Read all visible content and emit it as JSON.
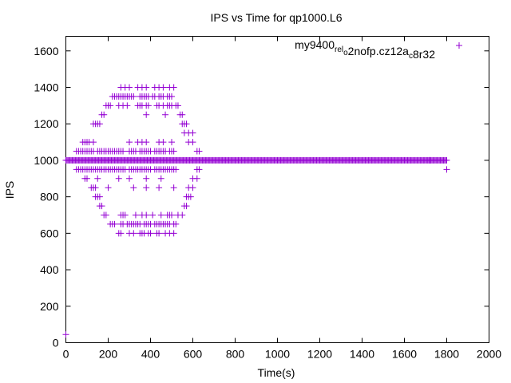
{
  "chart_data": {
    "type": "scatter",
    "title": "IPS vs Time for qp1000.L6",
    "xlabel": "Time(s)",
    "ylabel": "IPS",
    "xlim": [
      0,
      2000
    ],
    "ylim": [
      0,
      1680
    ],
    "x_ticks": [
      0,
      200,
      400,
      600,
      800,
      1000,
      1200,
      1400,
      1600,
      1800,
      2000
    ],
    "y_ticks": [
      0,
      200,
      400,
      600,
      800,
      1000,
      1200,
      1400,
      1600
    ],
    "grid": false,
    "legend_position": "top-right",
    "marker": "plus",
    "color": "#9400d3",
    "series": [
      {
        "name": "my9400_rel_o2nofp.cz12a_c8r32",
        "legend_parts": [
          {
            "text": "my9400",
            "shift": "none"
          },
          {
            "text": "rel",
            "shift": "sub"
          },
          {
            "text": "o",
            "shift": "sub"
          },
          {
            "text": "2nofp.cz12a",
            "shift": "none"
          },
          {
            "text": "c",
            "shift": "sub"
          },
          {
            "text": "8r32",
            "shift": "none"
          }
        ],
        "points": [
          [
            0,
            45
          ],
          [
            1800,
            950
          ],
          [
            1720,
            1000
          ],
          [
            260,
            1400
          ],
          [
            280,
            1400
          ],
          [
            300,
            1400
          ],
          [
            340,
            1400
          ],
          [
            360,
            1400
          ],
          [
            380,
            1400
          ],
          [
            420,
            1400
          ],
          [
            440,
            1400
          ],
          [
            460,
            1400
          ],
          [
            490,
            1400
          ],
          [
            510,
            1400
          ],
          [
            220,
            1350
          ],
          [
            230,
            1350
          ],
          [
            240,
            1350
          ],
          [
            250,
            1350
          ],
          [
            260,
            1350
          ],
          [
            270,
            1350
          ],
          [
            280,
            1350
          ],
          [
            290,
            1350
          ],
          [
            300,
            1350
          ],
          [
            310,
            1350
          ],
          [
            320,
            1350
          ],
          [
            350,
            1350
          ],
          [
            360,
            1350
          ],
          [
            370,
            1350
          ],
          [
            380,
            1350
          ],
          [
            390,
            1350
          ],
          [
            410,
            1350
          ],
          [
            420,
            1350
          ],
          [
            440,
            1350
          ],
          [
            450,
            1350
          ],
          [
            460,
            1350
          ],
          [
            480,
            1350
          ],
          [
            490,
            1350
          ],
          [
            500,
            1350
          ],
          [
            190,
            1300
          ],
          [
            200,
            1300
          ],
          [
            210,
            1300
          ],
          [
            250,
            1300
          ],
          [
            270,
            1300
          ],
          [
            290,
            1300
          ],
          [
            340,
            1300
          ],
          [
            350,
            1300
          ],
          [
            360,
            1300
          ],
          [
            380,
            1300
          ],
          [
            390,
            1300
          ],
          [
            430,
            1300
          ],
          [
            440,
            1300
          ],
          [
            460,
            1300
          ],
          [
            480,
            1300
          ],
          [
            490,
            1300
          ],
          [
            500,
            1300
          ],
          [
            520,
            1300
          ],
          [
            530,
            1300
          ],
          [
            170,
            1250
          ],
          [
            180,
            1250
          ],
          [
            380,
            1250
          ],
          [
            470,
            1250
          ],
          [
            540,
            1250
          ],
          [
            550,
            1250
          ],
          [
            130,
            1200
          ],
          [
            140,
            1200
          ],
          [
            150,
            1200
          ],
          [
            160,
            1200
          ],
          [
            550,
            1200
          ],
          [
            560,
            1200
          ],
          [
            570,
            1200
          ],
          [
            560,
            1150
          ],
          [
            580,
            1150
          ],
          [
            600,
            1150
          ],
          [
            80,
            1100
          ],
          [
            90,
            1100
          ],
          [
            100,
            1100
          ],
          [
            110,
            1100
          ],
          [
            130,
            1100
          ],
          [
            580,
            1100
          ],
          [
            600,
            1100
          ],
          [
            50,
            1050
          ],
          [
            60,
            1050
          ],
          [
            70,
            1050
          ],
          [
            80,
            1050
          ],
          [
            90,
            1050
          ],
          [
            100,
            1050
          ],
          [
            110,
            1050
          ],
          [
            120,
            1050
          ],
          [
            130,
            1050
          ],
          [
            150,
            1050
          ],
          [
            160,
            1050
          ],
          [
            170,
            1050
          ],
          [
            180,
            1050
          ],
          [
            190,
            1050
          ],
          [
            200,
            1050
          ],
          [
            210,
            1050
          ],
          [
            220,
            1050
          ],
          [
            230,
            1050
          ],
          [
            240,
            1050
          ],
          [
            250,
            1050
          ],
          [
            260,
            1050
          ],
          [
            270,
            1050
          ],
          [
            300,
            1050
          ],
          [
            310,
            1050
          ],
          [
            320,
            1050
          ],
          [
            330,
            1050
          ],
          [
            350,
            1050
          ],
          [
            360,
            1050
          ],
          [
            370,
            1050
          ],
          [
            380,
            1050
          ],
          [
            390,
            1050
          ],
          [
            400,
            1050
          ],
          [
            420,
            1050
          ],
          [
            430,
            1050
          ],
          [
            440,
            1050
          ],
          [
            450,
            1050
          ],
          [
            460,
            1050
          ],
          [
            470,
            1050
          ],
          [
            490,
            1050
          ],
          [
            500,
            1050
          ],
          [
            510,
            1050
          ],
          [
            620,
            1050
          ],
          [
            630,
            1050
          ],
          [
            300,
            1100
          ],
          [
            340,
            1100
          ],
          [
            360,
            1100
          ],
          [
            380,
            1100
          ],
          [
            440,
            1100
          ],
          [
            460,
            1100
          ],
          [
            500,
            1100
          ],
          [
            50,
            950
          ],
          [
            60,
            950
          ],
          [
            70,
            950
          ],
          [
            80,
            950
          ],
          [
            90,
            950
          ],
          [
            100,
            950
          ],
          [
            110,
            950
          ],
          [
            120,
            950
          ],
          [
            130,
            950
          ],
          [
            140,
            950
          ],
          [
            150,
            950
          ],
          [
            160,
            950
          ],
          [
            170,
            950
          ],
          [
            180,
            950
          ],
          [
            190,
            950
          ],
          [
            200,
            950
          ],
          [
            210,
            950
          ],
          [
            220,
            950
          ],
          [
            230,
            950
          ],
          [
            240,
            950
          ],
          [
            250,
            950
          ],
          [
            260,
            950
          ],
          [
            270,
            950
          ],
          [
            280,
            950
          ],
          [
            300,
            950
          ],
          [
            310,
            950
          ],
          [
            320,
            950
          ],
          [
            330,
            950
          ],
          [
            340,
            950
          ],
          [
            350,
            950
          ],
          [
            360,
            950
          ],
          [
            370,
            950
          ],
          [
            380,
            950
          ],
          [
            390,
            950
          ],
          [
            400,
            950
          ],
          [
            420,
            950
          ],
          [
            430,
            950
          ],
          [
            440,
            950
          ],
          [
            450,
            950
          ],
          [
            460,
            950
          ],
          [
            470,
            950
          ],
          [
            480,
            950
          ],
          [
            490,
            950
          ],
          [
            500,
            950
          ],
          [
            510,
            950
          ],
          [
            520,
            950
          ],
          [
            620,
            950
          ],
          [
            630,
            950
          ],
          [
            90,
            900
          ],
          [
            100,
            900
          ],
          [
            150,
            900
          ],
          [
            250,
            900
          ],
          [
            300,
            900
          ],
          [
            380,
            900
          ],
          [
            450,
            900
          ],
          [
            600,
            900
          ],
          [
            620,
            900
          ],
          [
            120,
            850
          ],
          [
            130,
            850
          ],
          [
            140,
            850
          ],
          [
            200,
            850
          ],
          [
            320,
            850
          ],
          [
            380,
            850
          ],
          [
            440,
            850
          ],
          [
            510,
            850
          ],
          [
            580,
            850
          ],
          [
            600,
            850
          ],
          [
            140,
            800
          ],
          [
            150,
            800
          ],
          [
            160,
            800
          ],
          [
            570,
            800
          ],
          [
            580,
            800
          ],
          [
            590,
            800
          ],
          [
            160,
            750
          ],
          [
            170,
            750
          ],
          [
            560,
            750
          ],
          [
            570,
            750
          ],
          [
            180,
            700
          ],
          [
            190,
            700
          ],
          [
            260,
            700
          ],
          [
            270,
            700
          ],
          [
            280,
            700
          ],
          [
            330,
            700
          ],
          [
            360,
            700
          ],
          [
            380,
            700
          ],
          [
            410,
            700
          ],
          [
            450,
            700
          ],
          [
            480,
            700
          ],
          [
            490,
            700
          ],
          [
            500,
            700
          ],
          [
            530,
            700
          ],
          [
            550,
            700
          ],
          [
            210,
            650
          ],
          [
            220,
            650
          ],
          [
            230,
            650
          ],
          [
            260,
            650
          ],
          [
            270,
            650
          ],
          [
            290,
            650
          ],
          [
            300,
            650
          ],
          [
            310,
            650
          ],
          [
            320,
            650
          ],
          [
            330,
            650
          ],
          [
            340,
            650
          ],
          [
            350,
            650
          ],
          [
            370,
            650
          ],
          [
            380,
            650
          ],
          [
            390,
            650
          ],
          [
            400,
            650
          ],
          [
            420,
            650
          ],
          [
            430,
            650
          ],
          [
            440,
            650
          ],
          [
            450,
            650
          ],
          [
            460,
            650
          ],
          [
            470,
            650
          ],
          [
            480,
            650
          ],
          [
            490,
            650
          ],
          [
            510,
            650
          ],
          [
            520,
            650
          ],
          [
            250,
            600
          ],
          [
            260,
            600
          ],
          [
            300,
            600
          ],
          [
            320,
            600
          ],
          [
            350,
            600
          ],
          [
            360,
            600
          ],
          [
            370,
            600
          ],
          [
            390,
            600
          ],
          [
            400,
            600
          ],
          [
            430,
            600
          ],
          [
            440,
            600
          ],
          [
            470,
            600
          ],
          [
            490,
            600
          ],
          [
            510,
            600
          ]
        ],
        "line_band": {
          "x_start": 0,
          "x_end": 1800,
          "y": 1000,
          "step": 5
        }
      }
    ]
  }
}
